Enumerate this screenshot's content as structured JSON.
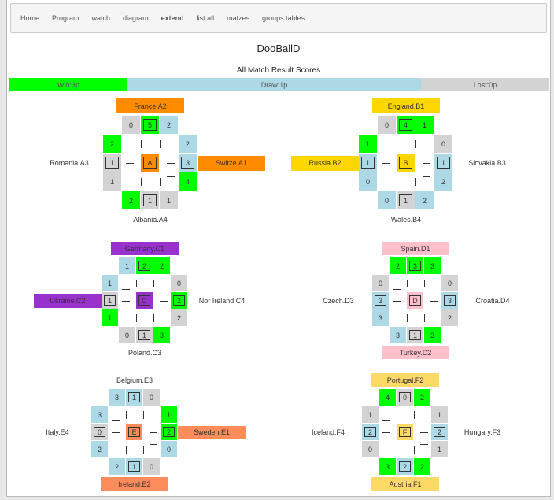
{
  "nav": [
    "Home",
    "Program",
    "watch",
    "diagram",
    "extend",
    "list all",
    "matzes",
    "groups tables"
  ],
  "title": "DooBallD",
  "subtitle": "All Match Result Scores",
  "legend": [
    {
      "label": "Win:3p",
      "color": "#00ff00"
    },
    {
      "label": "Draw:1p",
      "color": "#add8e6"
    },
    {
      "label": "Lost:0p",
      "color": "#d3d3d3"
    }
  ],
  "groups": [
    {
      "center": "A",
      "color": "#ff8c00",
      "teams": [
        {
          "name": "France.A2",
          "color": "#ff8c00"
        },
        {
          "name": "Switze.A1",
          "color": "#ff8c00"
        },
        {
          "name": "Albania.A4"
        },
        {
          "name": "Romania.A3"
        }
      ],
      "cells": [
        {
          "value": 0,
          "color": "#d3d3d3"
        },
        {
          "value": 5,
          "color": "#00ff00"
        },
        {
          "value": 2,
          "color": "#add8e6"
        },
        {
          "value": 2,
          "color": "#add8e6"
        },
        {
          "value": 3,
          "color": "#add8e6"
        },
        {
          "value": 4,
          "color": "#00ff00"
        },
        {
          "value": 2,
          "color": "#00ff00"
        },
        {
          "value": 1,
          "color": "#d3d3d3"
        },
        {
          "value": 1,
          "color": "#d3d3d3"
        },
        {
          "value": 2,
          "color": "#00ff00"
        },
        {
          "value": 1,
          "color": "#d3d3d3"
        },
        {
          "value": 1,
          "color": "#d3d3d3"
        }
      ]
    },
    {
      "center": "B",
      "color": "#ffd700",
      "teams": [
        {
          "name": "England.B1",
          "color": "#ffd700"
        },
        {
          "name": "Slovakia.B3"
        },
        {
          "name": "Wales.B4"
        },
        {
          "name": "Russia.B2",
          "color": "#ffd700"
        }
      ],
      "cells": [
        {
          "value": 0,
          "color": "#d3d3d3"
        },
        {
          "value": 4,
          "color": "#00ff00"
        },
        {
          "value": 1,
          "color": "#00ff00"
        },
        {
          "value": 0,
          "color": "#d3d3d3"
        },
        {
          "value": 1,
          "color": "#add8e6"
        },
        {
          "value": 2,
          "color": "#add8e6"
        },
        {
          "value": 0,
          "color": "#add8e6"
        },
        {
          "value": 1,
          "color": "#d3d3d3"
        },
        {
          "value": 2,
          "color": "#add8e6"
        },
        {
          "value": 1,
          "color": "#00ff00"
        },
        {
          "value": 1,
          "color": "#add8e6"
        },
        {
          "value": 0,
          "color": "#add8e6"
        }
      ]
    },
    {
      "center": "C",
      "color": "#9932cc",
      "teams": [
        {
          "name": "Germany.C1",
          "color": "#9932cc"
        },
        {
          "name": "Nor Ireland.C4"
        },
        {
          "name": "Poland.C3"
        },
        {
          "name": "Ukraine.C2",
          "color": "#9932cc"
        }
      ],
      "cells": [
        {
          "value": 1,
          "color": "#add8e6"
        },
        {
          "value": 2,
          "color": "#00ff00"
        },
        {
          "value": 2,
          "color": "#00ff00"
        },
        {
          "value": 0,
          "color": "#d3d3d3"
        },
        {
          "value": 2,
          "color": "#00ff00"
        },
        {
          "value": 2,
          "color": "#d3d3d3"
        },
        {
          "value": 0,
          "color": "#d3d3d3"
        },
        {
          "value": 1,
          "color": "#d3d3d3"
        },
        {
          "value": 3,
          "color": "#00ff00"
        },
        {
          "value": 1,
          "color": "#add8e6"
        },
        {
          "value": 1,
          "color": "#d3d3d3"
        },
        {
          "value": 1,
          "color": "#00ff00"
        }
      ]
    },
    {
      "center": "D",
      "color": "#ffc0cb",
      "teams": [
        {
          "name": "Spain.D1",
          "color": "#ffc0cb"
        },
        {
          "name": "Croatia.D4"
        },
        {
          "name": "Turkey.D2",
          "color": "#ffc0cb"
        },
        {
          "name": "Czech.D3"
        }
      ],
      "cells": [
        {
          "value": 2,
          "color": "#00ff00"
        },
        {
          "value": 3,
          "color": "#00ff00"
        },
        {
          "value": 3,
          "color": "#00ff00"
        },
        {
          "value": 0,
          "color": "#d3d3d3"
        },
        {
          "value": 3,
          "color": "#add8e6"
        },
        {
          "value": 2,
          "color": "#d3d3d3"
        },
        {
          "value": 3,
          "color": "#add8e6"
        },
        {
          "value": 1,
          "color": "#d3d3d3"
        },
        {
          "value": 3,
          "color": "#00ff00"
        },
        {
          "value": 0,
          "color": "#d3d3d3"
        },
        {
          "value": 3,
          "color": "#add8e6"
        },
        {
          "value": 3,
          "color": "#add8e6"
        }
      ]
    },
    {
      "center": "E",
      "color": "#ff8c5a",
      "teams": [
        {
          "name": "Belgium.E3"
        },
        {
          "name": "Sweden.E1",
          "color": "#ff8c5a"
        },
        {
          "name": "Ireland.E2",
          "color": "#ff8c5a"
        },
        {
          "name": "Italy.E4"
        }
      ],
      "cells": [
        {
          "value": 3,
          "color": "#add8e6"
        },
        {
          "value": 1,
          "color": "#add8e6"
        },
        {
          "value": 0,
          "color": "#d3d3d3"
        },
        {
          "value": 1,
          "color": "#00ff00"
        },
        {
          "value": 2,
          "color": "#00ff00"
        },
        {
          "value": 0,
          "color": "#add8e6"
        },
        {
          "value": 2,
          "color": "#add8e6"
        },
        {
          "value": 1,
          "color": "#add8e6"
        },
        {
          "value": 0,
          "color": "#d3d3d3"
        },
        {
          "value": 3,
          "color": "#add8e6"
        },
        {
          "value": 0,
          "color": "#d3d3d3"
        },
        {
          "value": 2,
          "color": "#add8e6"
        }
      ]
    },
    {
      "center": "F",
      "color": "#ffd966",
      "teams": [
        {
          "name": "Portugal.F2",
          "color": "#ffd966"
        },
        {
          "name": "Hungary.F3"
        },
        {
          "name": "Austria.F1",
          "color": "#ffd966"
        },
        {
          "name": "Iceland.F4"
        }
      ],
      "cells": [
        {
          "value": 4,
          "color": "#00ff00"
        },
        {
          "value": 0,
          "color": "#d3d3d3"
        },
        {
          "value": 2,
          "color": "#00ff00"
        },
        {
          "value": 1,
          "color": "#d3d3d3"
        },
        {
          "value": 2,
          "color": "#add8e6"
        },
        {
          "value": 1,
          "color": "#d3d3d3"
        },
        {
          "value": 3,
          "color": "#00ff00"
        },
        {
          "value": 2,
          "color": "#add8e6"
        },
        {
          "value": 2,
          "color": "#00ff00"
        },
        {
          "value": 1,
          "color": "#d3d3d3"
        },
        {
          "value": 2,
          "color": "#add8e6"
        },
        {
          "value": 0,
          "color": "#d3d3d3"
        }
      ]
    }
  ]
}
